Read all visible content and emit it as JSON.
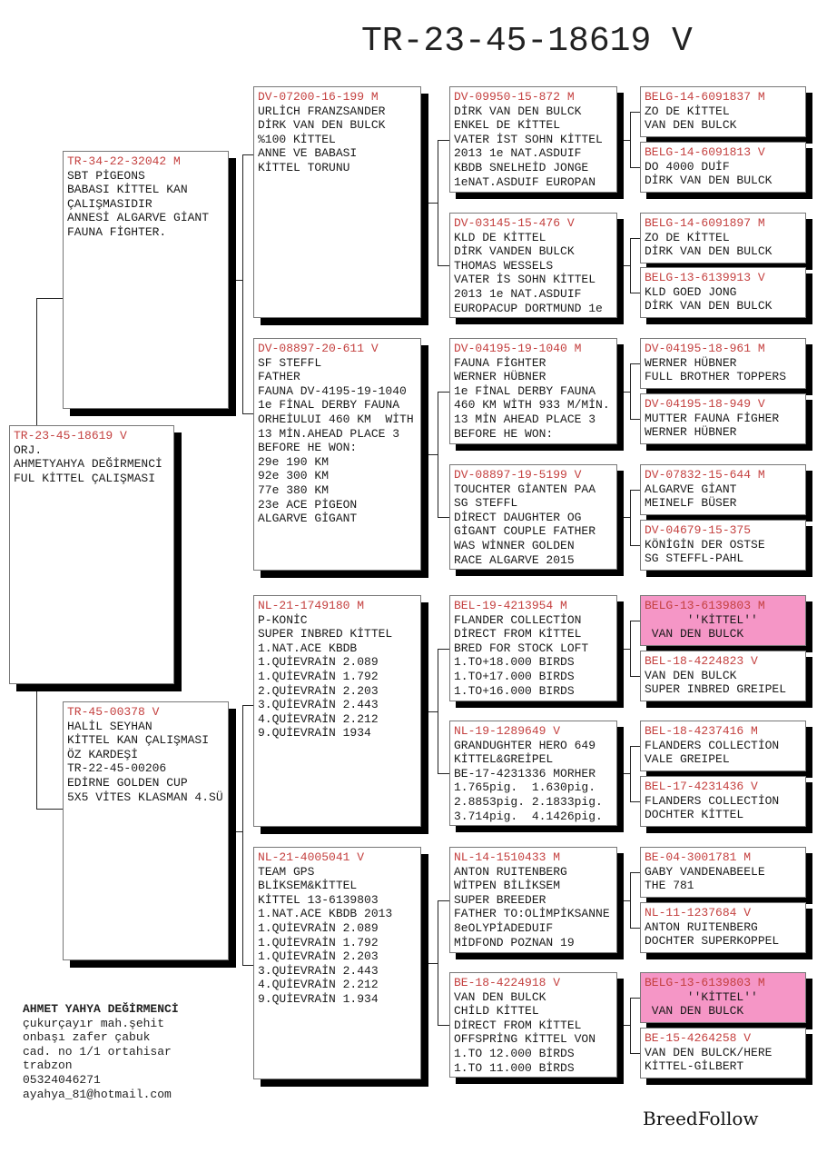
{
  "title": "TR-23-45-18619 V",
  "colors": {
    "ring": "#c4403f",
    "highlight": "#f596c6"
  },
  "pedigree": {
    "subject": {
      "ring": "TR-23-45-18619 V",
      "lines": [
        "ORJ.",
        "AHMETYAHYA DEĞİRMENCİ",
        "FUL KİTTEL ÇALIŞMASI"
      ]
    },
    "parents": [
      {
        "ring": "TR-34-22-32042 M",
        "lines": [
          "SBT PİGEONS",
          "BABASI KİTTEL KAN",
          "ÇALIŞMASIDIR",
          "ANNESİ ALGARVE GİANT",
          "FAUNA FİGHTER."
        ]
      },
      {
        "ring": "TR-45-00378 V",
        "lines": [
          "HALİL SEYHAN",
          "KİTTEL KAN ÇALIŞMASI",
          "ÖZ KARDEŞİ",
          "TR-22-45-00206",
          "EDİRNE GOLDEN CUP",
          "5X5 VİTES KLASMAN 4.SÜ"
        ]
      }
    ],
    "grandparents": [
      {
        "ring": "DV-07200-16-199 M",
        "lines": [
          "URLİCH FRANZSANDER",
          "DİRK VAN DEN BULCK",
          "%100 KİTTEL",
          "ANNE VE BABASI",
          "KİTTEL TORUNU"
        ]
      },
      {
        "ring": "DV-08897-20-611 V",
        "lines": [
          "SF STEFFL",
          "FATHER",
          "FAUNA DV-4195-19-1040",
          "1e FİNAL DERBY FAUNA",
          "ORHEİULUI 460 KM  WİTH",
          "13 MİN.AHEAD PLACE 3",
          "BEFORE HE WON:",
          "29e 190 KM",
          "92e 300 KM",
          "77e 380 KM",
          "23e ACE PİGEON",
          "ALGARVE GİGANT"
        ]
      },
      {
        "ring": "NL-21-1749180 M",
        "lines": [
          "P-KONİC",
          "SUPER INBRED KİTTEL",
          "1.NAT.ACE KBDB",
          "1.QUİEVRAİN 2.089",
          "1.QUİEVRAİN 1.792",
          "2.QUİEVRAİN 2.203",
          "3.QUİEVRAİN 2.443",
          "4.QUİEVRAİN 2.212",
          "9.QUİEVRAİN 1934"
        ]
      },
      {
        "ring": "NL-21-4005041 V",
        "lines": [
          "TEAM GPS",
          "BLİKSEM&KİTTEL",
          "KİTTEL 13-6139803",
          "1.NAT.ACE KBDB 2013",
          "1.QUİEVRAİN 2.089",
          "1.QUİEVRAİN 1.792",
          "1.QUİEVRAİN 2.203",
          "3.QUİEVRAİN 2.443",
          "4.QUİEVRAİN 2.212",
          "9.QUİEVRAİN 1.934"
        ]
      }
    ],
    "great_grandparents": [
      {
        "ring": "DV-09950-15-872 M",
        "lines": [
          "DİRK VAN DEN BULCK",
          "ENKEL DE KİTTEL",
          "VATER İST SOHN KİTTEL",
          "2013 1e NAT.ASDUIF",
          "KBDB SNELHEİD JONGE",
          "1eNAT.ASDUIF EUROPAN"
        ]
      },
      {
        "ring": "DV-03145-15-476 V",
        "lines": [
          "KLD DE KİTTEL",
          "DİRK VANDEN BULCK",
          "THOMAS WESSELS",
          "VATER İS SOHN KİTTEL",
          "2013 1e NAT.ASDUIF",
          "EUROPACUP DORTMUND 1e"
        ]
      },
      {
        "ring": "DV-04195-19-1040 M",
        "lines": [
          "FAUNA FİGHTER",
          "WERNER HÜBNER",
          "1e FİNAL DERBY FAUNA",
          "460 KM WİTH 933 M/MİN.",
          "13 MİN AHEAD PLACE 3",
          "BEFORE HE WON:"
        ]
      },
      {
        "ring": "DV-08897-19-5199 V",
        "lines": [
          "TOUCHTER GİANTEN PAA",
          "SG STEFFL",
          "DİRECT DAUGHTER OG",
          "GİGANT COUPLE FATHER",
          "WAS WİNNER GOLDEN",
          "RACE ALGARVE 2015"
        ]
      },
      {
        "ring": "BEL-19-4213954 M",
        "lines": [
          "FLANDER COLLECTİON",
          "DİRECT FROM KİTTEL",
          "BRED FOR STOCK LOFT",
          "1.TO+18.000 BIRDS",
          "1.TO+17.000 BIRDS",
          "1.TO+16.000 BIRDS"
        ]
      },
      {
        "ring": "NL-19-1289649 V",
        "lines": [
          "GRANDUGHTER HERO 649",
          "KİTTEL&GREİPEL",
          "BE-17-4231336 MORHER",
          "1.765pig.  1.630pig.",
          "2.8853pig. 2.1833pig.",
          "3.714pig.  4.1426pig."
        ]
      },
      {
        "ring": "NL-14-1510433 M",
        "lines": [
          "ANTON RUITENBERG",
          "WİTPEN BİLİKSEM",
          "SUPER BREEDER",
          "FATHER TO:OLİMPİKSANNE",
          "8eOLYPİADEDUIF",
          "MİDFOND POZNAN 19"
        ]
      },
      {
        "ring": "BE-18-4224918 V",
        "lines": [
          "VAN DEN BULCK",
          "CHİLD KİTTEL",
          "DİRECT FROM KİTTEL",
          "OFFSPRİNG KİTTEL VON",
          "1.TO 12.000 BİRDS",
          "1.TO 11.000 BİRDS"
        ]
      }
    ],
    "great_great_grandparents": [
      {
        "ring": "BELG-14-6091837 M",
        "lines": [
          "ZO DE KİTTEL",
          "VAN DEN BULCK"
        ]
      },
      {
        "ring": "BELG-14-6091813 V",
        "lines": [
          "DO 4000 DUİF",
          "DİRK VAN DEN BULCK"
        ]
      },
      {
        "ring": "BELG-14-6091897 M",
        "lines": [
          "ZO DE KİTTEL",
          "DİRK VAN DEN BULCK"
        ]
      },
      {
        "ring": "BELG-13-6139913 V",
        "lines": [
          "KLD GOED JONG",
          "DİRK VAN DEN BULCK"
        ]
      },
      {
        "ring": "DV-04195-18-961 M",
        "lines": [
          "WERNER HÜBNER",
          "FULL BROTHER TOPPERS"
        ]
      },
      {
        "ring": "DV-04195-18-949 V",
        "lines": [
          "MUTTER FAUNA FİGHER",
          "WERNER HÜBNER"
        ]
      },
      {
        "ring": "DV-07832-15-644 M",
        "lines": [
          "ALGARVE GİANT",
          "MEINELF BÜSER"
        ]
      },
      {
        "ring": "DV-04679-15-375",
        "lines": [
          "KÖNİGİN DER OSTSE",
          "SG STEFFL-PAHL"
        ]
      },
      {
        "ring": "BELG-13-6139803 M",
        "lines": [
          "      ''KİTTEL''",
          " VAN DEN BULCK"
        ],
        "highlighted": true
      },
      {
        "ring": "BEL-18-4224823 V",
        "lines": [
          "VAN DEN BULCK",
          "SUPER INBRED GREIPEL"
        ]
      },
      {
        "ring": "BEL-18-4237416 M",
        "lines": [
          "FLANDERS COLLECTİON",
          "VALE GREIPEL"
        ]
      },
      {
        "ring": "BEL-17-4231436 V",
        "lines": [
          "FLANDERS COLLECTİON",
          "DOCHTER KİTTEL"
        ]
      },
      {
        "ring": "BE-04-3001781 M",
        "lines": [
          "GABY VANDENABEELE",
          "THE 781"
        ]
      },
      {
        "ring": "NL-11-1237684 V",
        "lines": [
          "ANTON RUITENBERG",
          "DOCHTER SUPERKOPPEL"
        ]
      },
      {
        "ring": "BELG-13-6139803 M",
        "lines": [
          "      ''KİTTEL''",
          " VAN DEN BULCK"
        ],
        "highlighted": true
      },
      {
        "ring": "BE-15-4264258 V",
        "lines": [
          "VAN DEN BULCK/HERE",
          "KİTTEL-GİLBERT"
        ]
      }
    ]
  },
  "breeder": {
    "name": "AHMET YAHYA DEĞİRMENCİ",
    "address_lines": [
      "çukurçayır mah.şehit",
      "onbaşı zafer çabuk",
      "cad. no 1/1 ortahisar",
      "trabzon"
    ],
    "phone": "05324046271",
    "email": "ayahya_81@hotmail.com"
  },
  "brand": "BreedFollow"
}
